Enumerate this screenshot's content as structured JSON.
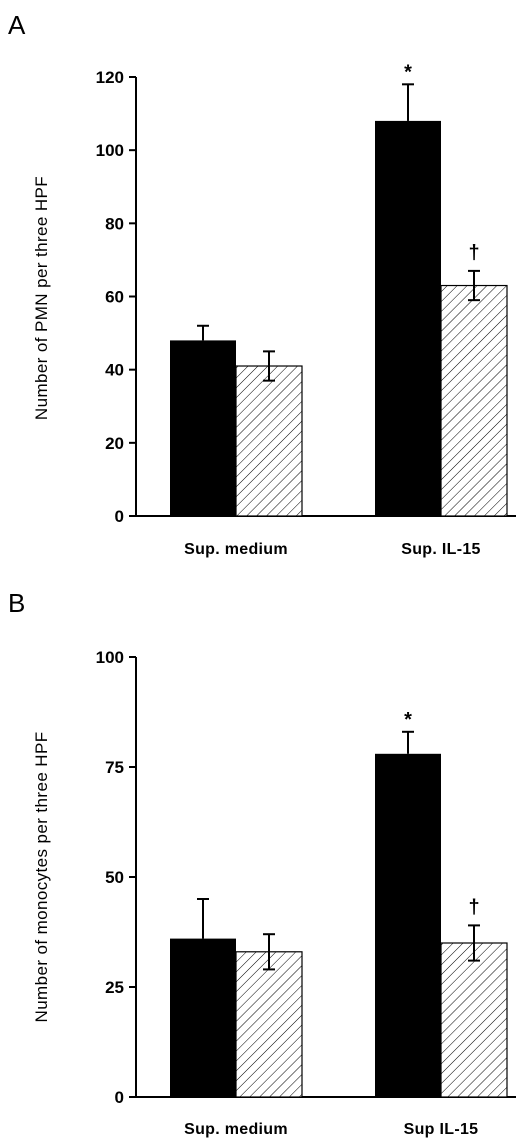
{
  "chart_data": [
    {
      "type": "bar",
      "panel": "A",
      "ylabel": "Number of PMN per three HPF",
      "xlabel": "",
      "ylim": [
        0,
        120
      ],
      "yticks": [
        0,
        20,
        40,
        60,
        80,
        100,
        120
      ],
      "categories": [
        "Sup. medium",
        "Sup. IL-15"
      ],
      "series": [
        {
          "fill": "solid",
          "color": "#000000",
          "values": [
            48,
            108
          ],
          "errors": [
            4,
            10
          ]
        },
        {
          "fill": "hatched",
          "color": "#000000",
          "values": [
            41,
            63
          ],
          "errors": [
            4,
            4
          ]
        }
      ],
      "annotations": [
        {
          "text": "*",
          "category": 1,
          "series": 0
        },
        {
          "text": "†",
          "category": 1,
          "series": 1
        }
      ]
    },
    {
      "type": "bar",
      "panel": "B",
      "ylabel": "Number of monocytes per three HPF",
      "xlabel": "",
      "ylim": [
        0,
        100
      ],
      "yticks": [
        0,
        25,
        50,
        75,
        100
      ],
      "categories": [
        "Sup. medium",
        "Sup IL-15"
      ],
      "series": [
        {
          "fill": "solid",
          "color": "#000000",
          "values": [
            36,
            78
          ],
          "errors": [
            9,
            5
          ]
        },
        {
          "fill": "hatched",
          "color": "#000000",
          "values": [
            33,
            35
          ],
          "errors": [
            4,
            4
          ]
        }
      ],
      "annotations": [
        {
          "text": "*",
          "category": 1,
          "series": 0
        },
        {
          "text": "†",
          "category": 1,
          "series": 1
        }
      ]
    }
  ]
}
